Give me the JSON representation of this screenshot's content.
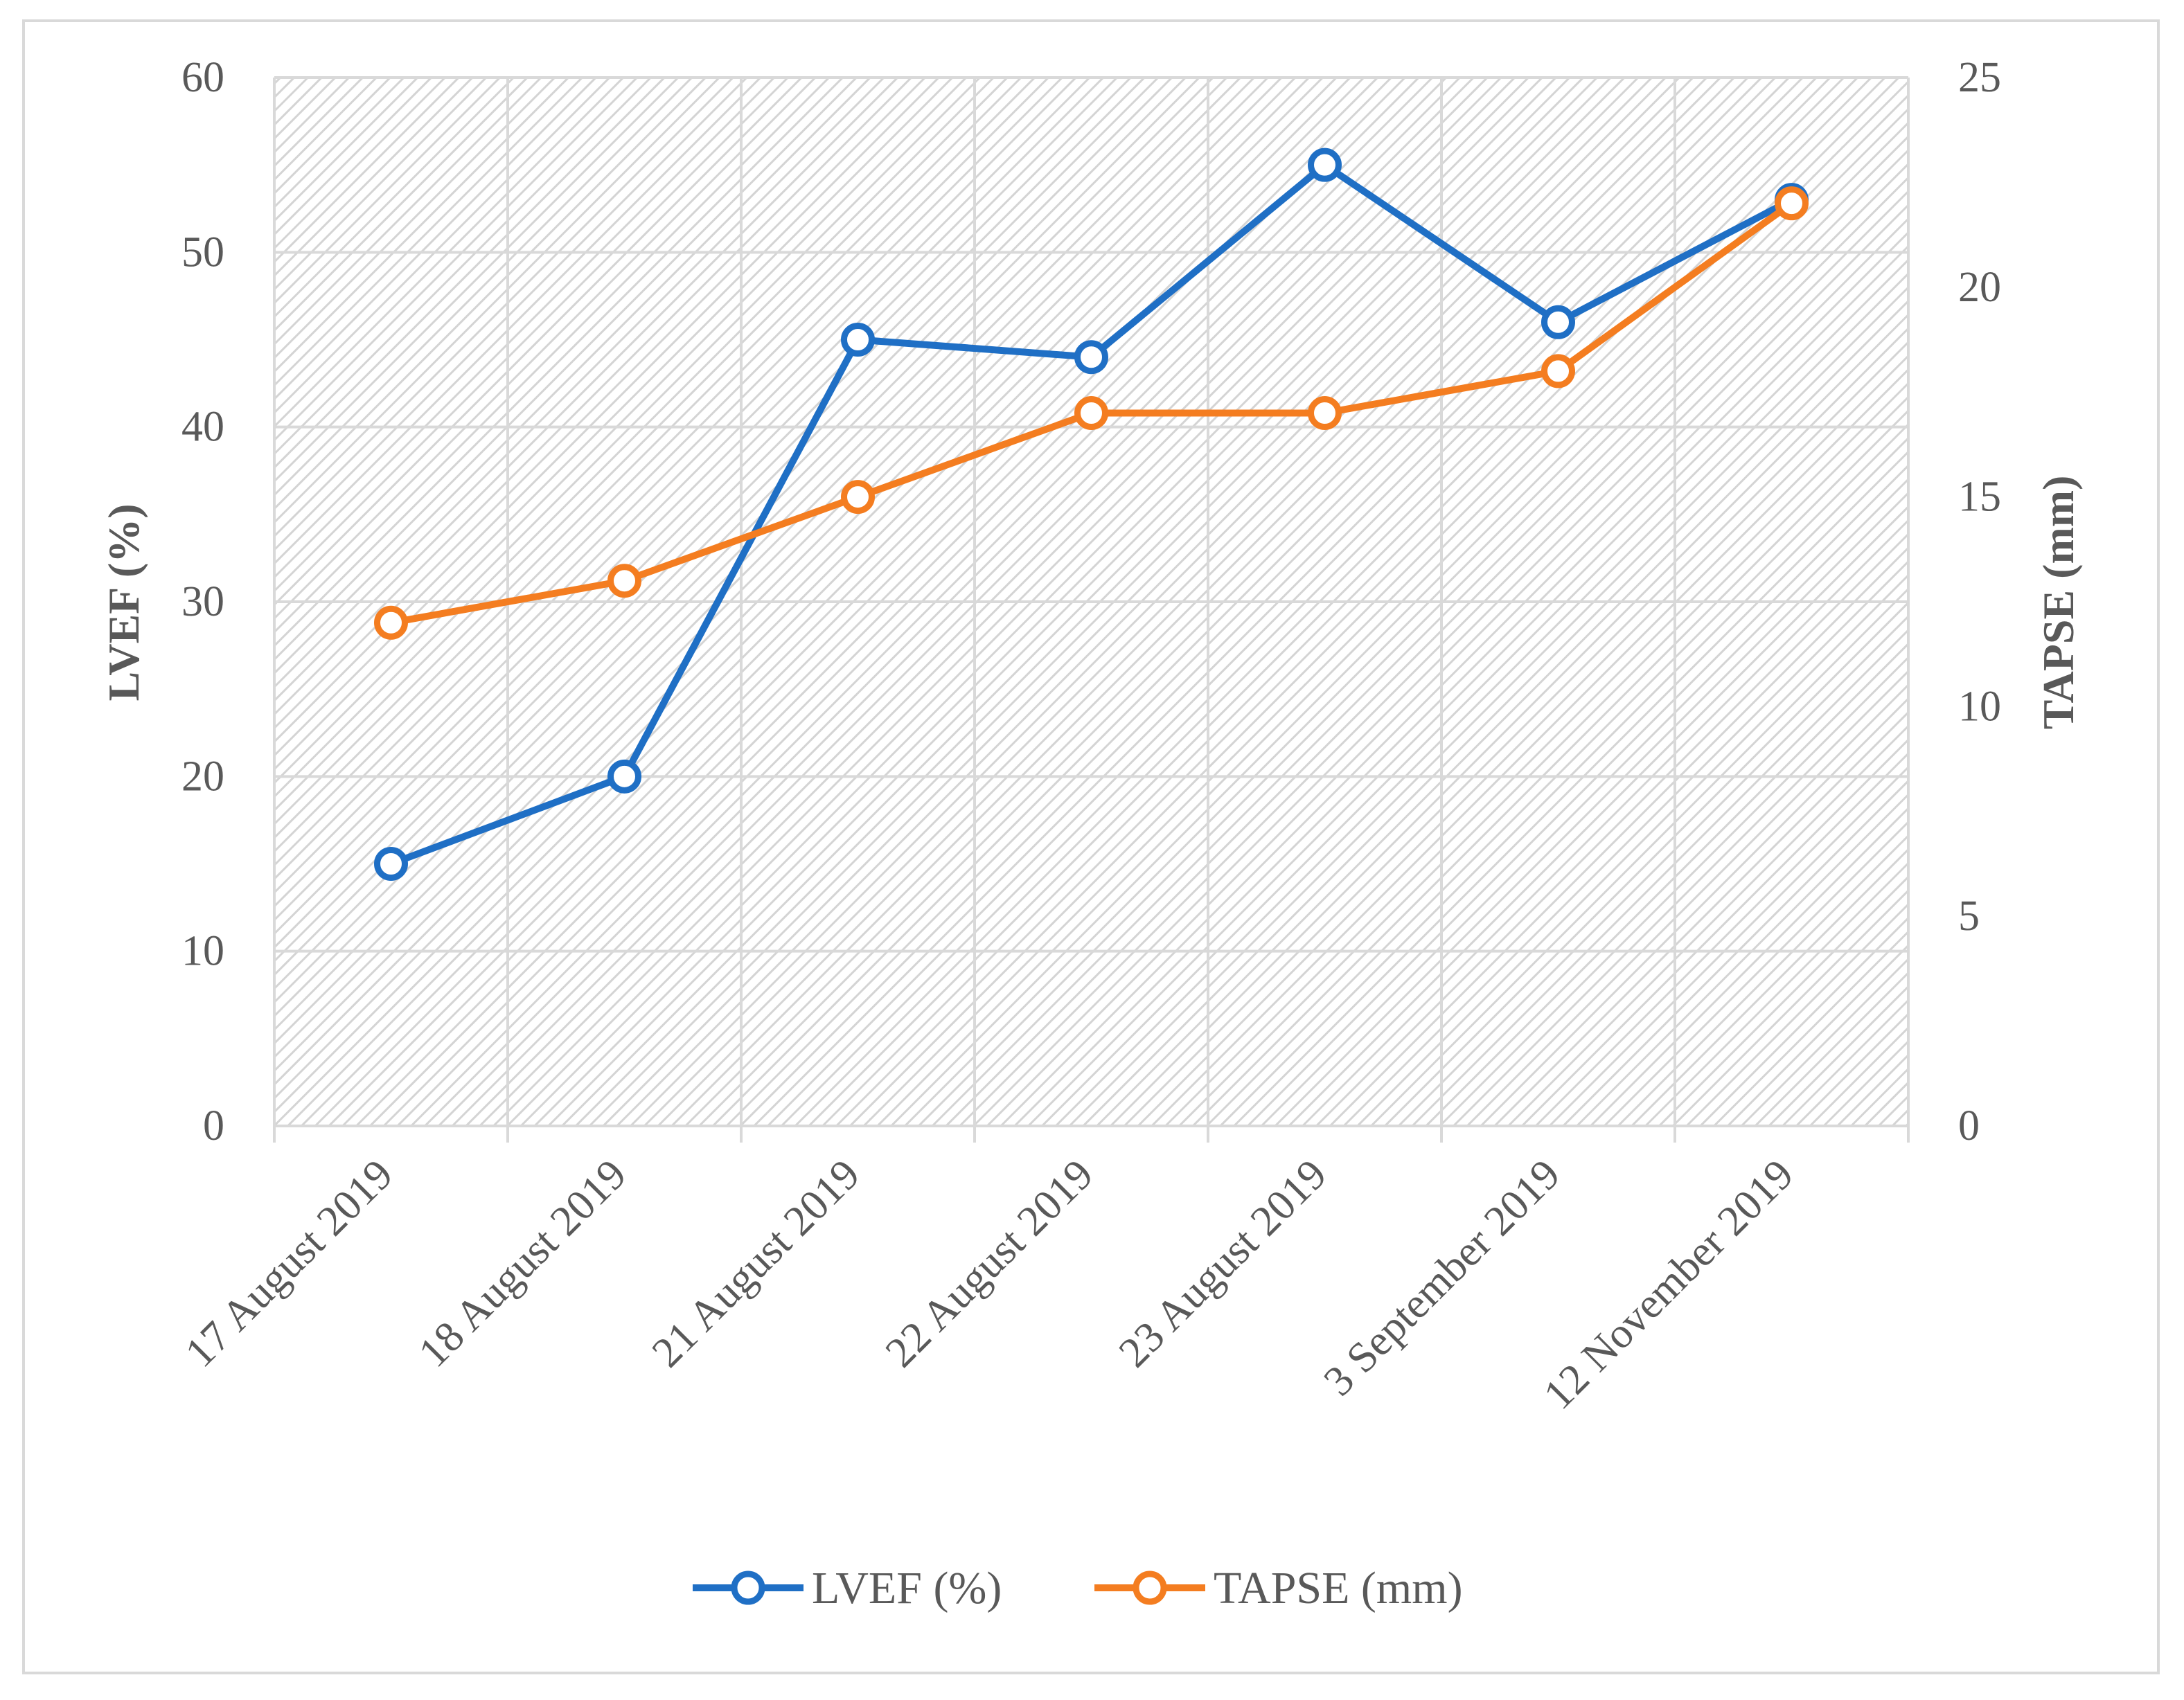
{
  "chart_data": {
    "type": "line",
    "title": "",
    "xlabel": "",
    "ylabel": "LVEF (%)",
    "y2label": "TAPSE (mm)",
    "ylim": [
      0,
      60
    ],
    "y2lim": [
      0,
      25
    ],
    "yticks": [
      "0",
      "10",
      "20",
      "30",
      "40",
      "50",
      "60"
    ],
    "y2ticks": [
      "0",
      "5",
      "10",
      "15",
      "20",
      "25"
    ],
    "categories": [
      "17 August 2019",
      "18 August 2019",
      "21 August 2019",
      "22 August 2019",
      "23 August 2019",
      "3 September 2019",
      "12 November 2019"
    ],
    "series": [
      {
        "name": "LVEF (%)",
        "axis": "left",
        "color": "#1f6fc5",
        "values": [
          15,
          20,
          45,
          44,
          55,
          46,
          53
        ]
      },
      {
        "name": "TAPSE (mm)",
        "axis": "right",
        "color": "#f47d20",
        "values": [
          12,
          13,
          15,
          17,
          17,
          18,
          22
        ]
      }
    ],
    "legend_position": "bottom",
    "grid": true
  }
}
